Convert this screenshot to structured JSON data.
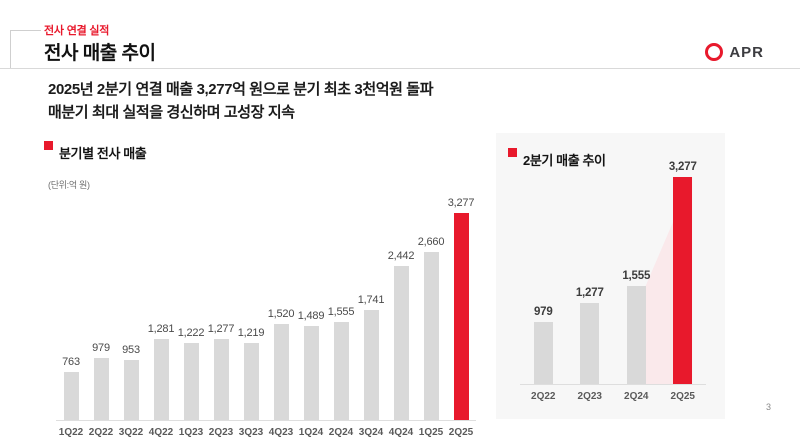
{
  "header": {
    "eyebrow": "전사 연결 실적",
    "title": "전사 매출 추이",
    "logo_text": "APR"
  },
  "summary": {
    "line1": "2025년 2분기 연결 매출 3,277억 원으로 분기 최초 3천억원 돌파",
    "line2": "매분기 최대 실적을 경신하며 고성장 지속"
  },
  "colors": {
    "accent_red": "#e8192c",
    "bar_gray": "#d9d9d9",
    "panel_bg": "#f7f7f7",
    "wedge_pink": "#fae9eb"
  },
  "page": {
    "number": "3"
  },
  "chart_data": [
    {
      "id": "quarterly_revenue",
      "type": "bar",
      "title": "분기별 전사 매출",
      "unit_label": "(단위:억 원)",
      "categories": [
        "1Q22",
        "2Q22",
        "3Q22",
        "4Q22",
        "1Q23",
        "2Q23",
        "3Q23",
        "4Q23",
        "1Q24",
        "2Q24",
        "3Q24",
        "4Q24",
        "1Q25",
        "2Q25"
      ],
      "values": [
        763,
        979,
        953,
        1281,
        1222,
        1277,
        1219,
        1520,
        1489,
        1555,
        1741,
        2442,
        2660,
        3277
      ],
      "value_labels": [
        "763",
        "979",
        "953",
        "1,281",
        "1,222",
        "1,277",
        "1,219",
        "1,520",
        "1,489",
        "1,555",
        "1,741",
        "2,442",
        "2,660",
        "3,277"
      ],
      "highlight_index": 13,
      "ylim": [
        0,
        3277
      ],
      "ylabel": "억 원",
      "grid": false,
      "legend_position": "top-left"
    },
    {
      "id": "q2_revenue_trend",
      "type": "bar",
      "title": "2분기 매출 추이",
      "categories": [
        "2Q22",
        "2Q23",
        "2Q24",
        "2Q25"
      ],
      "values": [
        979,
        1277,
        1555,
        3277
      ],
      "value_labels": [
        "979",
        "1,277",
        "1,555",
        "3,277"
      ],
      "highlight_index": 3,
      "growth_wedge": {
        "from_index": 2,
        "to_index": 3
      },
      "ylim": [
        0,
        3277
      ],
      "ylabel": "억 원",
      "grid": false,
      "legend_position": "top-left"
    }
  ]
}
